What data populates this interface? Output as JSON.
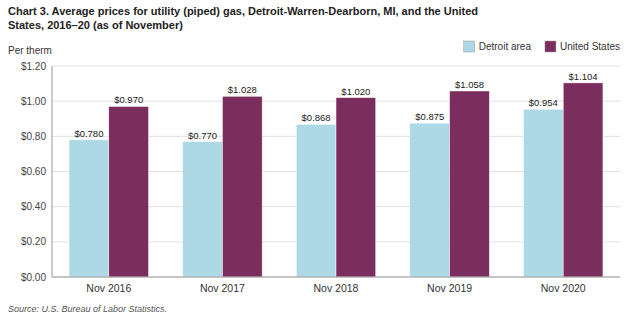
{
  "chart_data": {
    "type": "bar",
    "title": "Chart 3. Average prices for utility (piped) gas, Detroit-Warren-Dearborn, MI, and the United\nStates, 2016–20  (as of November)",
    "y_label": "Per therm",
    "source": "Source: U.S. Bureau of Labor Statistics.",
    "categories": [
      "Nov 2016",
      "Nov 2017",
      "Nov 2018",
      "Nov 2019",
      "Nov 2020"
    ],
    "series": [
      {
        "name": "Detroit area",
        "color": "#ADD8E6",
        "values": [
          0.78,
          0.77,
          0.868,
          0.875,
          0.954
        ],
        "value_labels": [
          "$0.780",
          "$0.770",
          "$0.868",
          "$0.875",
          "$0.954"
        ]
      },
      {
        "name": "United States",
        "color": "#7B2D5E",
        "values": [
          0.97,
          1.028,
          1.02,
          1.058,
          1.104
        ],
        "value_labels": [
          "$0.970",
          "$1.028",
          "$1.020",
          "$1.058",
          "$1.104"
        ]
      }
    ],
    "ylim": [
      0.0,
      1.2
    ],
    "yticks": [
      {
        "value": 0.0,
        "label": "$0.00"
      },
      {
        "value": 0.2,
        "label": "$0.20"
      },
      {
        "value": 0.4,
        "label": "$0.40"
      },
      {
        "value": 0.6,
        "label": "$0.60"
      },
      {
        "value": 0.8,
        "label": "$0.80"
      },
      {
        "value": 1.0,
        "label": "$1.00"
      },
      {
        "value": 1.2,
        "label": "$1.20"
      }
    ],
    "grid": true,
    "legend": "upper right",
    "data_labels": true
  }
}
